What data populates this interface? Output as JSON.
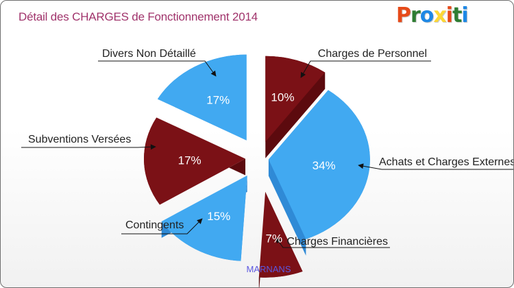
{
  "header": {
    "title": "Détail des CHARGES de Fonctionnement 2014",
    "logo_letters": [
      "P",
      "r",
      "o",
      "x",
      "i",
      "t",
      "i"
    ],
    "logo_colors": [
      "#e64a19",
      "#2e7d32",
      "#1e88e5",
      "#fdd835",
      "#e64a19",
      "#2e7d32",
      "#1e88e5"
    ]
  },
  "footer": {
    "city": "MARNANS"
  },
  "chart_data": {
    "type": "pie",
    "title": "Détail des CHARGES de Fonctionnement 2014",
    "subtitle": "MARNANS",
    "slices": [
      {
        "label": "Charges de Personnel",
        "value": 10,
        "display": "10%",
        "color": "#7b1116",
        "side": "#5c0a0e"
      },
      {
        "label": "Achats et Charges Externes",
        "value": 34,
        "display": "34%",
        "color": "#41a9f1",
        "side": "#2f8ad6"
      },
      {
        "label": "Charges Financières",
        "value": 7,
        "display": "7%",
        "color": "#7b1116",
        "side": "#5c0a0e"
      },
      {
        "label": "Contingents",
        "value": 15,
        "display": "15%",
        "color": "#41a9f1",
        "side": "#2f8ad6"
      },
      {
        "label": "Subventions Versées",
        "value": 17,
        "display": "17%",
        "color": "#7b1116",
        "side": "#5c0a0e"
      },
      {
        "label": "Divers Non Détaillé",
        "value": 17,
        "display": "17%",
        "color": "#41a9f1",
        "side": "#2f8ad6"
      }
    ]
  }
}
